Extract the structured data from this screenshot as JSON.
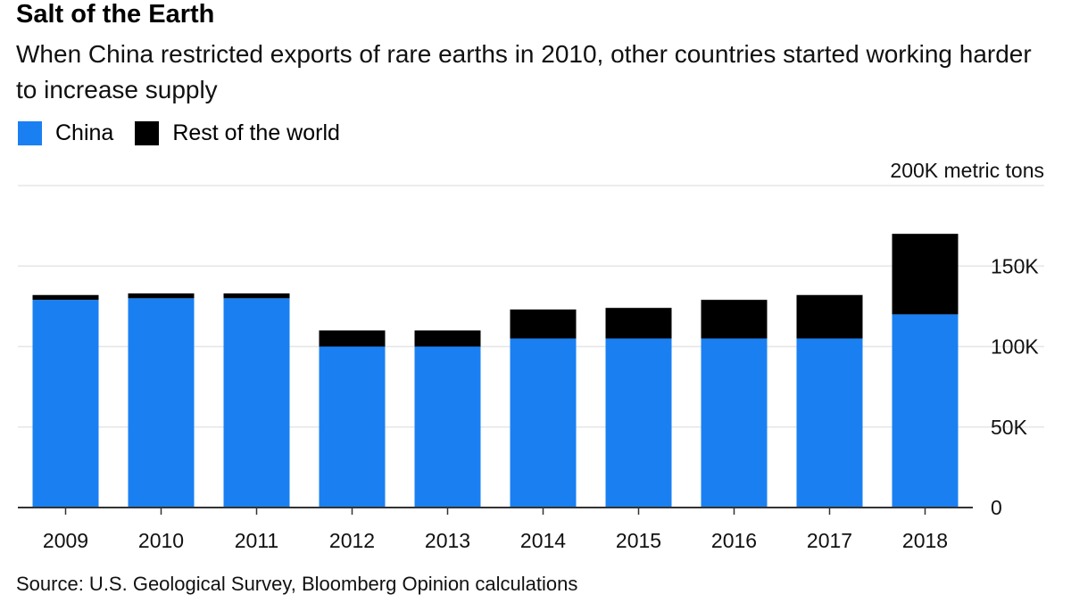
{
  "title": "Salt of the Earth",
  "subtitle": "When China restricted exports of rare earths in 2010, other countries started working harder to increase supply",
  "legend": {
    "china": {
      "label": "China",
      "color": "#1a80f2"
    },
    "rest": {
      "label": "Rest of the world",
      "color": "#000000"
    }
  },
  "source": "Source: U.S. Geological Survey, Bloomberg Opinion calculations",
  "chart_data": {
    "type": "bar",
    "stacked": true,
    "categories": [
      "2009",
      "2010",
      "2011",
      "2012",
      "2013",
      "2014",
      "2015",
      "2016",
      "2017",
      "2018"
    ],
    "series": [
      {
        "name": "China",
        "color": "#1a80f2",
        "values": [
          129000,
          130000,
          130000,
          100000,
          100000,
          105000,
          105000,
          105000,
          105000,
          120000
        ]
      },
      {
        "name": "Rest of the world",
        "color": "#000000",
        "values": [
          3000,
          3000,
          3000,
          10000,
          10000,
          18000,
          19000,
          24000,
          27000,
          50000
        ]
      }
    ],
    "ylim": [
      0,
      200000
    ],
    "y_ticks": [
      {
        "value": 0,
        "label": "0"
      },
      {
        "value": 50000,
        "label": "50K"
      },
      {
        "value": 100000,
        "label": "100K"
      },
      {
        "value": 150000,
        "label": "150K"
      },
      {
        "value": 200000,
        "label": "200K metric tons"
      }
    ],
    "grid": true,
    "y_axis_side": "right",
    "legend_position": "top-left"
  }
}
